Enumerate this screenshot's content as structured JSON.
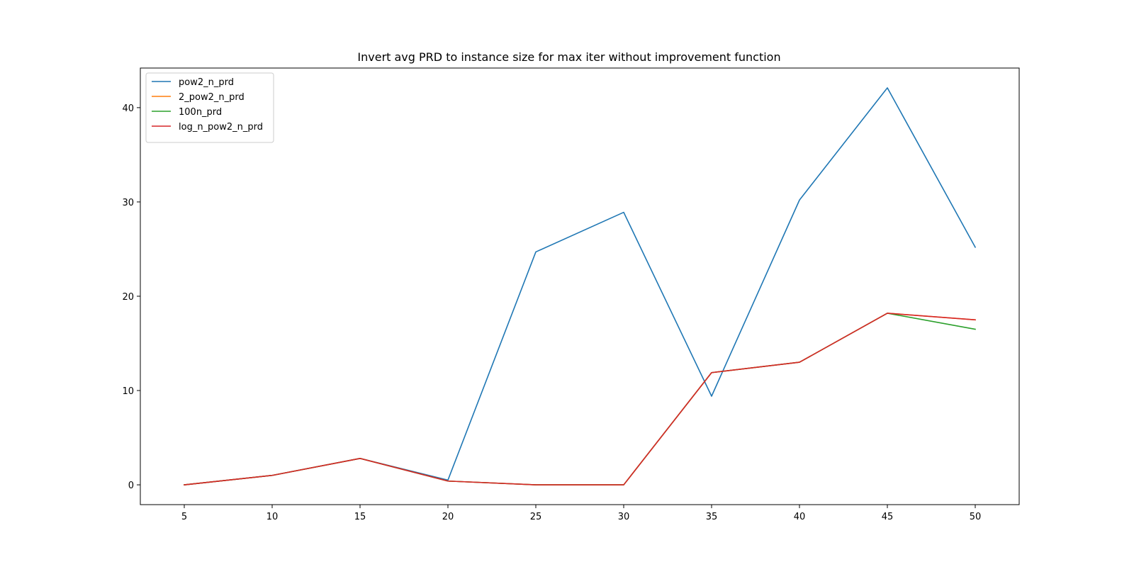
{
  "chart_data": {
    "type": "line",
    "title": "Invert avg PRD to instance size for max iter without improvement function",
    "xlabel": "",
    "ylabel": "",
    "x": [
      5,
      10,
      15,
      20,
      25,
      30,
      35,
      40,
      45,
      50
    ],
    "x_ticks": [
      5,
      10,
      15,
      20,
      25,
      30,
      35,
      40,
      45,
      50
    ],
    "y_ticks": [
      0,
      10,
      20,
      30,
      40
    ],
    "xlim": [
      2.5,
      52.5
    ],
    "ylim": [
      -2.1,
      44.2
    ],
    "grid": false,
    "legend_position": "upper-left",
    "series": [
      {
        "name": "pow2_n_prd",
        "color": "#1f77b4",
        "values": [
          0.0,
          1.0,
          2.8,
          0.5,
          24.7,
          28.9,
          9.4,
          30.2,
          42.1,
          25.2
        ]
      },
      {
        "name": "2_pow2_n_prd",
        "color": "#ff7f0e",
        "values": [
          0.0,
          1.0,
          2.8,
          0.4,
          0.0,
          0.0,
          11.9,
          13.0,
          18.2,
          17.5
        ]
      },
      {
        "name": "100n_prd",
        "color": "#2ca02c",
        "values": [
          0.0,
          1.0,
          2.8,
          0.4,
          0.0,
          0.0,
          11.9,
          13.0,
          18.2,
          16.5
        ]
      },
      {
        "name": "log_n_pow2_n_prd",
        "color": "#d62728",
        "values": [
          0.0,
          1.0,
          2.8,
          0.4,
          0.0,
          0.0,
          11.9,
          13.0,
          18.2,
          17.5
        ]
      }
    ]
  }
}
